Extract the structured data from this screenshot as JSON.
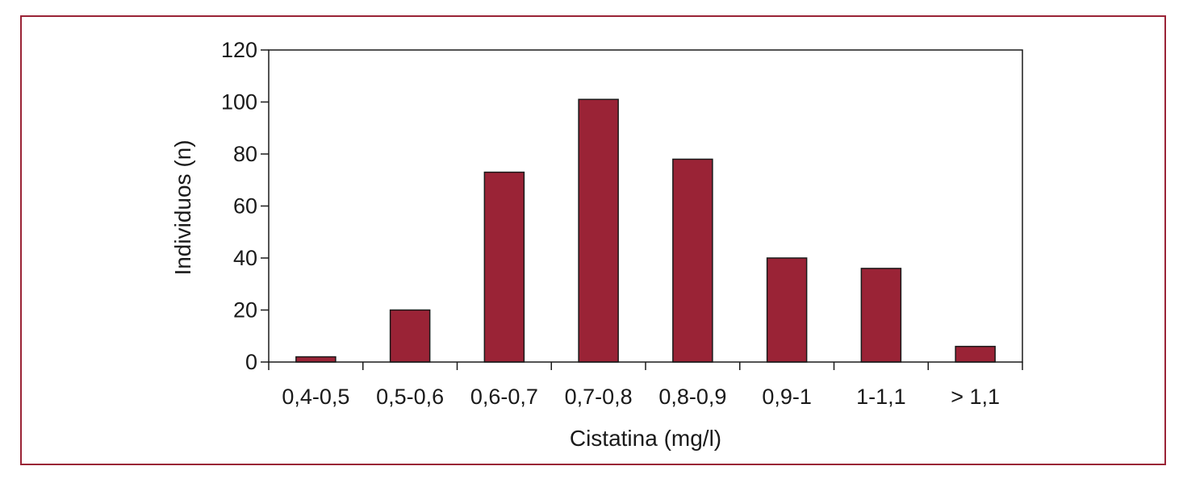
{
  "chart_data": {
    "type": "bar",
    "title": "",
    "xlabel": "Cistatina (mg/l)",
    "ylabel": "Individuos (n)",
    "categories": [
      "0,4-0,5",
      "0,5-0,6",
      "0,6-0,7",
      "0,7-0,8",
      "0,8-0,9",
      "0,9-1",
      "1-1,1",
      "> 1,1"
    ],
    "values": [
      2,
      20,
      73,
      101,
      78,
      40,
      36,
      6
    ],
    "ylim": [
      0,
      120
    ],
    "yticks": [
      0,
      20,
      40,
      60,
      80,
      100,
      120
    ],
    "grid": false,
    "legend": "none",
    "bar_color": "#9a2336",
    "border_color": "#9a2336"
  }
}
